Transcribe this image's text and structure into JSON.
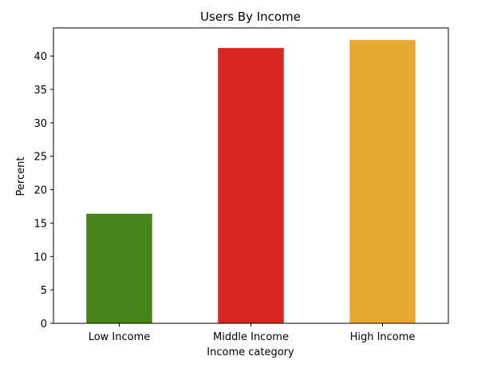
{
  "chart_data": {
    "type": "bar",
    "title": "Users By Income",
    "xlabel": "Income category",
    "ylabel": "Percent",
    "categories": [
      "Low Income",
      "Middle Income",
      "High Income"
    ],
    "values": [
      16.4,
      41.2,
      42.4
    ],
    "colors": [
      "#468419",
      "#d92522",
      "#e6a933"
    ],
    "ylim": [
      0,
      44.2
    ],
    "yticks": [
      0,
      5,
      10,
      15,
      20,
      25,
      30,
      35,
      40
    ],
    "grid": false,
    "legend": "none"
  }
}
